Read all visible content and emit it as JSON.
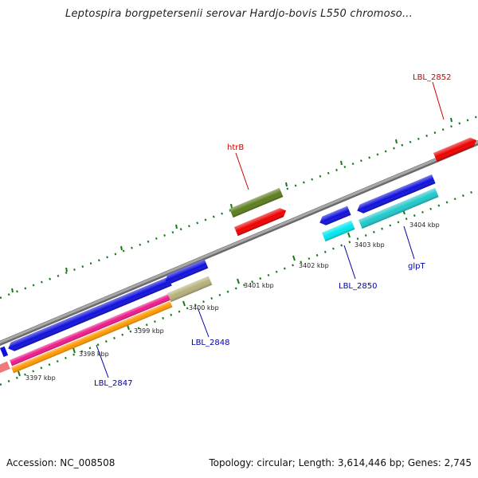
{
  "title": "Leptospira borgpetersenii serovar Hardjo-bovis L550 chromoso...",
  "footer": {
    "accession": "Accession: NC_008508",
    "topology": "Topology: circular; Length: 3,614,446 bp; Genes: 2,745"
  },
  "colors": {
    "backbone": "#8a8a8a",
    "tick": "#1a7a1a",
    "forward_label": "#cc0000",
    "reverse_label": "#0000aa"
  },
  "ticks": [
    "3397 kbp",
    "3398 kbp",
    "3399 kbp",
    "3400 kbp",
    "3401 kbp",
    "3402 kbp",
    "3403 kbp",
    "3404 kbp"
  ],
  "gene_labels": [
    {
      "text": "LBL_2852",
      "strand": "forward"
    },
    {
      "text": "htrB",
      "strand": "forward"
    },
    {
      "text": "LBL_2850",
      "strand": "reverse"
    },
    {
      "text": "glpT",
      "strand": "reverse"
    },
    {
      "text": "LBL_2848",
      "strand": "reverse"
    },
    {
      "text": "LBL_2847",
      "strand": "reverse"
    }
  ]
}
